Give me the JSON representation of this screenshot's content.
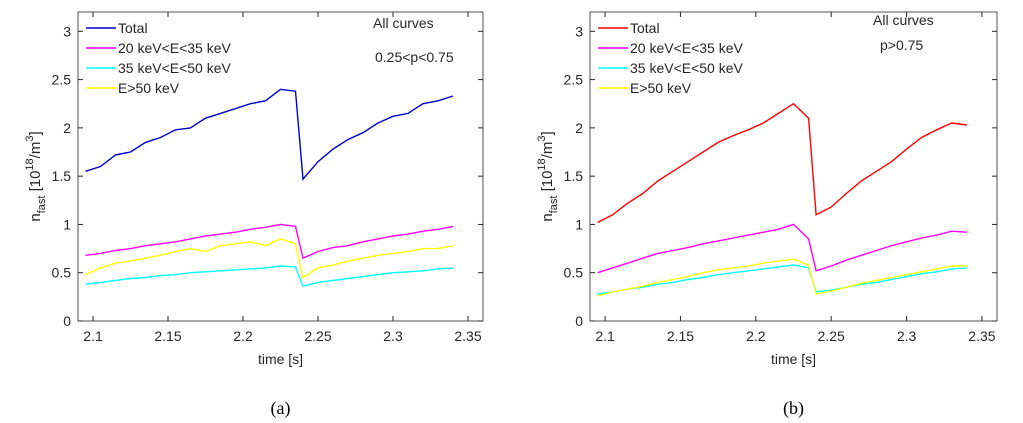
{
  "chart_data": [
    {
      "type": "line",
      "legend": "upper left",
      "xlabel": "time [s]",
      "ylabel": [
        "n",
        "fast",
        " [10",
        "18",
        "/m",
        "3",
        "]"
      ],
      "annotations": [
        "All curves",
        "0.25<p<0.75"
      ],
      "annotation_color": "#1010dd",
      "caption": "(a)",
      "xlim": [
        2.09,
        2.36
      ],
      "ylim": [
        0,
        3.2
      ],
      "xticks": [
        2.1,
        2.15,
        2.2,
        2.25,
        2.3,
        2.35
      ],
      "yticks": [
        0,
        0.5,
        1,
        1.5,
        2,
        2.5,
        3
      ],
      "x": [
        2.095,
        2.105,
        2.115,
        2.125,
        2.135,
        2.145,
        2.155,
        2.165,
        2.175,
        2.185,
        2.195,
        2.205,
        2.215,
        2.225,
        2.235,
        2.24,
        2.25,
        2.26,
        2.27,
        2.28,
        2.29,
        2.3,
        2.31,
        2.32,
        2.33,
        2.34
      ],
      "series": [
        {
          "name": "Total",
          "color": "#0000cc",
          "values": [
            1.55,
            1.6,
            1.72,
            1.75,
            1.85,
            1.9,
            1.98,
            2.0,
            2.1,
            2.15,
            2.2,
            2.25,
            2.28,
            2.4,
            2.38,
            1.47,
            1.65,
            1.78,
            1.88,
            1.95,
            2.05,
            2.12,
            2.15,
            2.25,
            2.28,
            2.33
          ]
        },
        {
          "name": "20 keV<E<35 keV",
          "color": "#ff00ff",
          "values": [
            0.68,
            0.7,
            0.73,
            0.75,
            0.78,
            0.8,
            0.82,
            0.85,
            0.88,
            0.9,
            0.92,
            0.95,
            0.97,
            1.0,
            0.98,
            0.65,
            0.72,
            0.76,
            0.78,
            0.82,
            0.85,
            0.88,
            0.9,
            0.93,
            0.95,
            0.98
          ]
        },
        {
          "name": "35 keV<E<50 keV",
          "color": "#00ffff",
          "values": [
            0.38,
            0.4,
            0.42,
            0.44,
            0.45,
            0.47,
            0.48,
            0.5,
            0.51,
            0.52,
            0.53,
            0.54,
            0.55,
            0.57,
            0.56,
            0.36,
            0.4,
            0.42,
            0.44,
            0.46,
            0.48,
            0.5,
            0.51,
            0.52,
            0.54,
            0.55
          ]
        },
        {
          "name": "E>50 keV",
          "color": "#ffff00",
          "values": [
            0.48,
            0.55,
            0.6,
            0.62,
            0.65,
            0.68,
            0.72,
            0.75,
            0.72,
            0.78,
            0.8,
            0.82,
            0.78,
            0.85,
            0.8,
            0.45,
            0.55,
            0.58,
            0.62,
            0.65,
            0.68,
            0.7,
            0.72,
            0.75,
            0.75,
            0.78
          ]
        }
      ]
    },
    {
      "type": "line",
      "legend": "upper left",
      "xlabel": "time [s]",
      "ylabel": [
        "n",
        "fast",
        " [10",
        "18",
        "/m",
        "3",
        "]"
      ],
      "annotations": [
        "All curves",
        "p>0.75"
      ],
      "annotation_color": "#ff0000",
      "caption": "(b)",
      "xlim": [
        2.09,
        2.36
      ],
      "ylim": [
        0,
        3.2
      ],
      "xticks": [
        2.1,
        2.15,
        2.2,
        2.25,
        2.3,
        2.35
      ],
      "yticks": [
        0,
        0.5,
        1,
        1.5,
        2,
        2.5,
        3
      ],
      "x": [
        2.095,
        2.105,
        2.115,
        2.125,
        2.135,
        2.145,
        2.155,
        2.165,
        2.175,
        2.185,
        2.195,
        2.205,
        2.215,
        2.225,
        2.235,
        2.24,
        2.25,
        2.26,
        2.27,
        2.28,
        2.29,
        2.3,
        2.31,
        2.32,
        2.33,
        2.34
      ],
      "series": [
        {
          "name": "Total",
          "color": "#ff0000",
          "values": [
            1.02,
            1.1,
            1.22,
            1.32,
            1.45,
            1.55,
            1.65,
            1.75,
            1.85,
            1.92,
            1.98,
            2.05,
            2.15,
            2.25,
            2.1,
            1.1,
            1.18,
            1.32,
            1.45,
            1.55,
            1.65,
            1.78,
            1.9,
            1.98,
            2.05,
            2.03
          ]
        },
        {
          "name": "20 keV<E<35 keV",
          "color": "#ff00ff",
          "values": [
            0.5,
            0.55,
            0.6,
            0.65,
            0.7,
            0.73,
            0.76,
            0.8,
            0.83,
            0.86,
            0.89,
            0.92,
            0.95,
            1.0,
            0.85,
            0.52,
            0.57,
            0.63,
            0.68,
            0.73,
            0.78,
            0.82,
            0.86,
            0.89,
            0.93,
            0.92
          ]
        },
        {
          "name": "35 keV<E<50 keV",
          "color": "#00ffff",
          "values": [
            0.28,
            0.3,
            0.33,
            0.35,
            0.38,
            0.4,
            0.43,
            0.45,
            0.48,
            0.5,
            0.52,
            0.54,
            0.56,
            0.58,
            0.55,
            0.3,
            0.32,
            0.35,
            0.38,
            0.4,
            0.43,
            0.46,
            0.49,
            0.51,
            0.54,
            0.55
          ]
        },
        {
          "name": "E>50 keV",
          "color": "#ffff00",
          "values": [
            0.26,
            0.3,
            0.33,
            0.36,
            0.4,
            0.43,
            0.46,
            0.5,
            0.53,
            0.55,
            0.57,
            0.6,
            0.62,
            0.64,
            0.58,
            0.28,
            0.31,
            0.35,
            0.39,
            0.42,
            0.45,
            0.48,
            0.51,
            0.54,
            0.57,
            0.57
          ]
        }
      ]
    }
  ]
}
